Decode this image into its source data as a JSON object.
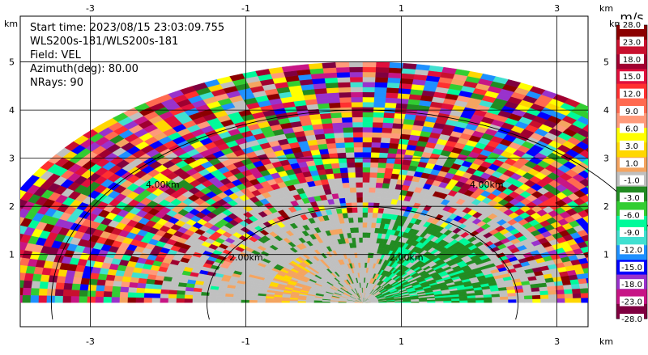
{
  "info": {
    "start_time": "Start time: 2023/08/15 23:03:09.755",
    "instrument": "WLS200s-181/WLS200s-181",
    "field": "Field: VEL",
    "azimuth": "Azimuth(deg): 80.00",
    "nrays": "NRays: 90"
  },
  "chart_data": {
    "type": "heatmap",
    "projection": "polar-rhi",
    "field": "VEL",
    "units": "m/s",
    "x_unit": "km",
    "y_unit": "km",
    "xlim": [
      -3.9,
      3.4
    ],
    "ylim": [
      -0.5,
      5.95
    ],
    "x_ticks": [
      -3,
      -1,
      1,
      3
    ],
    "y_ticks": [
      1,
      2,
      3,
      4,
      5
    ],
    "max_range_km": 5.0,
    "range_ring_labels": [
      "2.00km",
      "2.00km",
      "4.00km",
      "4.00km"
    ],
    "colorbar": {
      "label": "m/s",
      "tick_labels": [
        "28.0",
        "23.0",
        "18.0",
        "15.0",
        "12.0",
        "9.0",
        "6.0",
        "3.0",
        "1.0",
        "-1.0",
        "-3.0",
        "-6.0",
        "-9.0",
        "-12.0",
        "-15.0",
        "-18.0",
        "-23.0",
        "-28.0"
      ],
      "colors": [
        "#8b0000",
        "#c8102e",
        "#a00030",
        "#e0103c",
        "#ff3030",
        "#ff6a50",
        "#ff9a7a",
        "#ffff00",
        "#ffd700",
        "#f4a460",
        "#c0c0c0",
        "#228b22",
        "#32cd32",
        "#00fa9a",
        "#40e0d0",
        "#1e90ff",
        "#0000ff",
        "#9932cc",
        "#c71585",
        "#800040"
      ]
    },
    "regions": [
      {
        "desc": "near-range background",
        "value_range": "-1.0 to 1.0",
        "color": "#c0c0c0"
      },
      {
        "desc": "near-range southwest patch",
        "value_range": "1.0 to 3.0",
        "color": "#f4a460"
      },
      {
        "desc": "near-range east patch",
        "value_range": "-3.0 to -9.0",
        "color": "#228b22"
      },
      {
        "desc": "far-range noisy gates",
        "value_range": "-28.0 to 28.0",
        "color": "mixed"
      }
    ]
  }
}
